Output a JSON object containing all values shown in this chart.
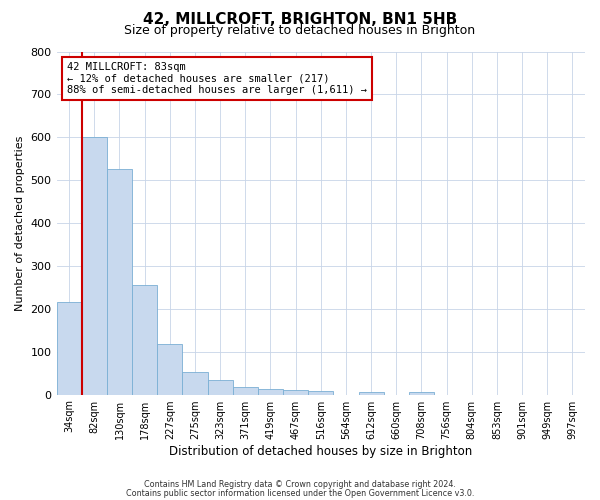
{
  "title": "42, MILLCROFT, BRIGHTON, BN1 5HB",
  "subtitle": "Size of property relative to detached houses in Brighton",
  "xlabel": "Distribution of detached houses by size in Brighton",
  "ylabel": "Number of detached properties",
  "bar_labels": [
    "34sqm",
    "82sqm",
    "130sqm",
    "178sqm",
    "227sqm",
    "275sqm",
    "323sqm",
    "371sqm",
    "419sqm",
    "467sqm",
    "516sqm",
    "564sqm",
    "612sqm",
    "660sqm",
    "708sqm",
    "756sqm",
    "804sqm",
    "853sqm",
    "901sqm",
    "949sqm",
    "997sqm"
  ],
  "bar_values": [
    215,
    600,
    527,
    255,
    117,
    52,
    33,
    18,
    13,
    10,
    8,
    0,
    7,
    0,
    5,
    0,
    0,
    0,
    0,
    0,
    0
  ],
  "bar_color": "#c8d9ee",
  "bar_edge_color": "#7aafd4",
  "ylim": [
    0,
    800
  ],
  "yticks": [
    0,
    100,
    200,
    300,
    400,
    500,
    600,
    700,
    800
  ],
  "annotation_text": "42 MILLCROFT: 83sqm\n← 12% of detached houses are smaller (217)\n88% of semi-detached houses are larger (1,611) →",
  "annotation_box_color": "#ffffff",
  "annotation_border_color": "#cc0000",
  "red_line_x": 1,
  "footer_line1": "Contains HM Land Registry data © Crown copyright and database right 2024.",
  "footer_line2": "Contains public sector information licensed under the Open Government Licence v3.0.",
  "background_color": "#ffffff",
  "grid_color": "#c8d4e8"
}
